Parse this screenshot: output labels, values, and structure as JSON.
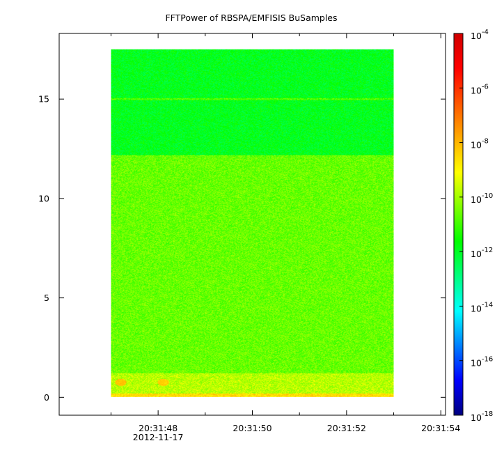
{
  "chart_data": {
    "type": "heatmap",
    "title": "FFTPower of RBSPA/EMFISIS  BuSamples",
    "xlabel": "",
    "ylabel": "",
    "x": {
      "range_s": [
        45.9,
        54.1
      ],
      "data_range_s": [
        47.0,
        53.0
      ],
      "ticks": [
        {
          "value": 48,
          "label": "20:31:48",
          "sublabel": "2012-11-17"
        },
        {
          "value": 50,
          "label": "20:31:50",
          "sublabel": ""
        },
        {
          "value": 52,
          "label": "20:31:52",
          "sublabel": ""
        },
        {
          "value": 54,
          "label": "20:31:54",
          "sublabel": ""
        }
      ],
      "minor_ticks": [
        47,
        49,
        51,
        53
      ]
    },
    "y": {
      "ylim": [
        -0.9,
        18.3
      ],
      "data_range": [
        0,
        17.5
      ],
      "ticks": [
        {
          "value": 0,
          "label": "0"
        },
        {
          "value": 5,
          "label": "5"
        },
        {
          "value": 10,
          "label": "10"
        },
        {
          "value": 15,
          "label": "15"
        }
      ]
    },
    "colorbar": {
      "scale": "log",
      "range": [
        1e-18,
        0.0001
      ],
      "colormap": [
        "#00007f",
        "#0000ff",
        "#007fff",
        "#00ffff",
        "#00ff7f",
        "#00ff00",
        "#7fff00",
        "#ffff00",
        "#ffaa00",
        "#ff5500",
        "#ff0000",
        "#d00000"
      ],
      "ticks": [
        {
          "exp": -4,
          "base": "10",
          "sup": "-4"
        },
        {
          "exp": -6,
          "base": "10",
          "sup": "-6"
        },
        {
          "exp": -8,
          "base": "10",
          "sup": "-8"
        },
        {
          "exp": -10,
          "base": "10",
          "sup": "-10"
        },
        {
          "exp": -12,
          "base": "10",
          "sup": "-12"
        },
        {
          "exp": -14,
          "base": "10",
          "sup": "-14"
        },
        {
          "exp": -16,
          "base": "10",
          "sup": "-16"
        },
        {
          "exp": -18,
          "base": "10",
          "sup": "-18"
        }
      ]
    },
    "bands": [
      {
        "y_from": 0,
        "y_to": 0.2,
        "log_power": -8.6
      },
      {
        "y_from": 0.2,
        "y_to": 1.2,
        "log_power": -9.8
      },
      {
        "y_from": 1.2,
        "y_to": 12.2,
        "log_power": -10.6
      },
      {
        "y_from": 12.2,
        "y_to": 17.5,
        "log_power": -11.9
      }
    ],
    "line_feature": {
      "y": 15.0,
      "log_power": -10.9
    },
    "spots": [
      {
        "x": 47.2,
        "y": 0.75,
        "log_power": -8.2
      },
      {
        "x": 48.1,
        "y": 0.75,
        "log_power": -8.4
      }
    ],
    "grid": false
  }
}
